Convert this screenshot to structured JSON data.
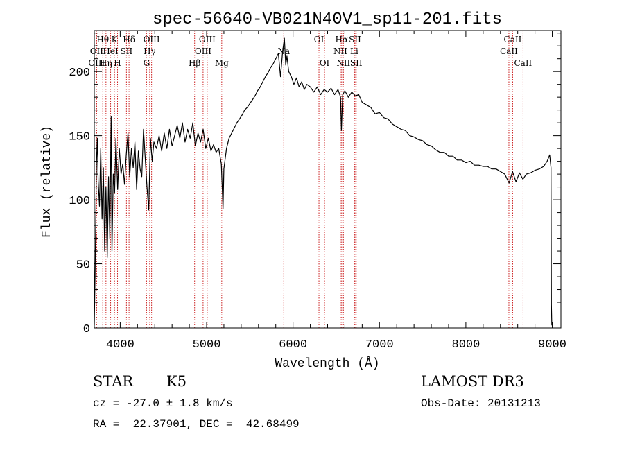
{
  "chart_data": {
    "type": "line",
    "title": "spec-56640-VB021N40V1_sp11-201.fits",
    "xlabel": "Wavelength (Å)",
    "ylabel": "Flux (relative)",
    "xlim": [
      3700,
      9100
    ],
    "ylim": [
      0,
      232
    ],
    "xticks": [
      4000,
      5000,
      6000,
      7000,
      8000,
      9000
    ],
    "yticks": [
      0,
      50,
      100,
      150,
      200
    ],
    "colors": {
      "spectrum": "#000000",
      "line_marker": "#cc2222",
      "axes": "#000000"
    },
    "series": [
      {
        "name": "spectrum",
        "points": [
          [
            3700,
            2
          ],
          [
            3710,
            45
          ],
          [
            3725,
            128
          ],
          [
            3735,
            148
          ],
          [
            3745,
            115
          ],
          [
            3760,
            95
          ],
          [
            3775,
            140
          ],
          [
            3790,
            85
          ],
          [
            3805,
            125
          ],
          [
            3820,
            60
          ],
          [
            3835,
            110
          ],
          [
            3850,
            55
          ],
          [
            3865,
            118
          ],
          [
            3880,
            70
          ],
          [
            3895,
            165
          ],
          [
            3905,
            60
          ],
          [
            3920,
            120
          ],
          [
            3935,
            105
          ],
          [
            3950,
            148
          ],
          [
            3970,
            108
          ],
          [
            3990,
            140
          ],
          [
            4010,
            120
          ],
          [
            4030,
            128
          ],
          [
            4050,
            112
          ],
          [
            4070,
            135
          ],
          [
            4090,
            152
          ],
          [
            4110,
            118
          ],
          [
            4130,
            140
          ],
          [
            4150,
            125
          ],
          [
            4170,
            145
          ],
          [
            4190,
            108
          ],
          [
            4210,
            138
          ],
          [
            4230,
            124
          ],
          [
            4250,
            118
          ],
          [
            4270,
            155
          ],
          [
            4290,
            132
          ],
          [
            4310,
            110
          ],
          [
            4330,
            92
          ],
          [
            4350,
            148
          ],
          [
            4370,
            130
          ],
          [
            4390,
            145
          ],
          [
            4420,
            140
          ],
          [
            4450,
            150
          ],
          [
            4480,
            138
          ],
          [
            4510,
            152
          ],
          [
            4540,
            140
          ],
          [
            4570,
            155
          ],
          [
            4600,
            142
          ],
          [
            4630,
            150
          ],
          [
            4660,
            158
          ],
          [
            4690,
            148
          ],
          [
            4720,
            160
          ],
          [
            4750,
            145
          ],
          [
            4780,
            155
          ],
          [
            4810,
            148
          ],
          [
            4840,
            160
          ],
          [
            4870,
            142
          ],
          [
            4900,
            152
          ],
          [
            4930,
            145
          ],
          [
            4960,
            155
          ],
          [
            4990,
            140
          ],
          [
            5020,
            148
          ],
          [
            5050,
            138
          ],
          [
            5080,
            143
          ],
          [
            5110,
            137
          ],
          [
            5140,
            140
          ],
          [
            5170,
            128
          ],
          [
            5190,
            93
          ],
          [
            5200,
            124
          ],
          [
            5230,
            140
          ],
          [
            5260,
            148
          ],
          [
            5290,
            152
          ],
          [
            5320,
            156
          ],
          [
            5350,
            160
          ],
          [
            5380,
            163
          ],
          [
            5410,
            166
          ],
          [
            5440,
            170
          ],
          [
            5470,
            172
          ],
          [
            5500,
            175
          ],
          [
            5530,
            178
          ],
          [
            5560,
            181
          ],
          [
            5590,
            185
          ],
          [
            5620,
            188
          ],
          [
            5650,
            192
          ],
          [
            5680,
            196
          ],
          [
            5710,
            199
          ],
          [
            5740,
            203
          ],
          [
            5770,
            206
          ],
          [
            5800,
            210
          ],
          [
            5830,
            214
          ],
          [
            5855,
            196
          ],
          [
            5880,
            216
          ],
          [
            5900,
            226
          ],
          [
            5915,
            205
          ],
          [
            5930,
            212
          ],
          [
            5950,
            200
          ],
          [
            5980,
            196
          ],
          [
            6010,
            190
          ],
          [
            6040,
            195
          ],
          [
            6070,
            188
          ],
          [
            6100,
            192
          ],
          [
            6130,
            186
          ],
          [
            6160,
            190
          ],
          [
            6200,
            188
          ],
          [
            6240,
            184
          ],
          [
            6280,
            188
          ],
          [
            6320,
            182
          ],
          [
            6360,
            186
          ],
          [
            6400,
            184
          ],
          [
            6440,
            187
          ],
          [
            6480,
            182
          ],
          [
            6520,
            186
          ],
          [
            6550,
            180
          ],
          [
            6560,
            154
          ],
          [
            6575,
            182
          ],
          [
            6600,
            185
          ],
          [
            6640,
            180
          ],
          [
            6680,
            184
          ],
          [
            6720,
            181
          ],
          [
            6760,
            182
          ],
          [
            6800,
            176
          ],
          [
            6850,
            174
          ],
          [
            6900,
            172
          ],
          [
            6950,
            167
          ],
          [
            7000,
            168
          ],
          [
            7050,
            164
          ],
          [
            7100,
            163
          ],
          [
            7150,
            159
          ],
          [
            7200,
            157
          ],
          [
            7250,
            155
          ],
          [
            7300,
            154
          ],
          [
            7350,
            150
          ],
          [
            7400,
            149
          ],
          [
            7450,
            147
          ],
          [
            7500,
            146
          ],
          [
            7550,
            143
          ],
          [
            7600,
            142
          ],
          [
            7650,
            139
          ],
          [
            7700,
            137
          ],
          [
            7750,
            137
          ],
          [
            7800,
            134
          ],
          [
            7850,
            134
          ],
          [
            7900,
            131
          ],
          [
            7950,
            131
          ],
          [
            8000,
            129
          ],
          [
            8050,
            130
          ],
          [
            8100,
            127
          ],
          [
            8150,
            127
          ],
          [
            8200,
            126
          ],
          [
            8250,
            126
          ],
          [
            8300,
            124
          ],
          [
            8350,
            124
          ],
          [
            8400,
            122
          ],
          [
            8450,
            120
          ],
          [
            8500,
            113
          ],
          [
            8540,
            122
          ],
          [
            8580,
            114
          ],
          [
            8620,
            121
          ],
          [
            8660,
            116
          ],
          [
            8700,
            120
          ],
          [
            8750,
            121
          ],
          [
            8800,
            123
          ],
          [
            8850,
            124
          ],
          [
            8900,
            126
          ],
          [
            8940,
            130
          ],
          [
            8970,
            135
          ],
          [
            8985,
            125
          ],
          [
            8990,
            18
          ],
          [
            8995,
            2
          ]
        ]
      }
    ],
    "line_markers": [
      {
        "label": "Hθ",
        "wavelength": 3798,
        "row": 1
      },
      {
        "label": "OII",
        "wavelength": 3727,
        "row": 2
      },
      {
        "label": "OIII",
        "wavelength": 3727,
        "row": 3
      },
      {
        "label": "K",
        "wavelength": 3934,
        "row": 1
      },
      {
        "label": "HeI",
        "wavelength": 3889,
        "row": 2
      },
      {
        "label": "Hη",
        "wavelength": 3835,
        "row": 3
      },
      {
        "label": "H",
        "wavelength": 3969,
        "row": 3
      },
      {
        "label": "SII",
        "wavelength": 4072,
        "row": 2
      },
      {
        "label": "Hδ",
        "wavelength": 4102,
        "row": 1
      },
      {
        "label": "OIII",
        "wavelength": 4363,
        "row": 1
      },
      {
        "label": "Hγ",
        "wavelength": 4341,
        "row": 2
      },
      {
        "label": "G",
        "wavelength": 4305,
        "row": 3
      },
      {
        "label": "Hβ",
        "wavelength": 4861,
        "row": 3
      },
      {
        "label": "OIII",
        "wavelength": 5007,
        "row": 1
      },
      {
        "label": "OIII",
        "wavelength": 4959,
        "row": 2
      },
      {
        "label": "Mg",
        "wavelength": 5175,
        "row": 3
      },
      {
        "label": "Na",
        "wavelength": 5893,
        "row": 2
      },
      {
        "label": "OI",
        "wavelength": 6300,
        "row": 1
      },
      {
        "label": "OI",
        "wavelength": 6364,
        "row": 3
      },
      {
        "label": "Hα",
        "wavelength": 6563,
        "row": 1
      },
      {
        "label": "NII",
        "wavelength": 6548,
        "row": 2
      },
      {
        "label": "NII",
        "wavelength": 6583,
        "row": 3
      },
      {
        "label": "SII",
        "wavelength": 6717,
        "row": 1
      },
      {
        "label": "Li",
        "wavelength": 6708,
        "row": 2
      },
      {
        "label": "SII",
        "wavelength": 6731,
        "row": 3
      },
      {
        "label": "CaII",
        "wavelength": 8542,
        "row": 1
      },
      {
        "label": "CaII",
        "wavelength": 8498,
        "row": 2
      },
      {
        "label": "CaII",
        "wavelength": 8662,
        "row": 3
      }
    ]
  },
  "info": {
    "object_type": "STAR",
    "subclass": "K5",
    "survey": "LAMOST DR3",
    "cz_line": "cz = -27.0 ± 1.8 km/s",
    "obs_date": "Obs-Date: 20131213",
    "coords_line": "RA =  22.37901, DEC =  42.68499"
  }
}
